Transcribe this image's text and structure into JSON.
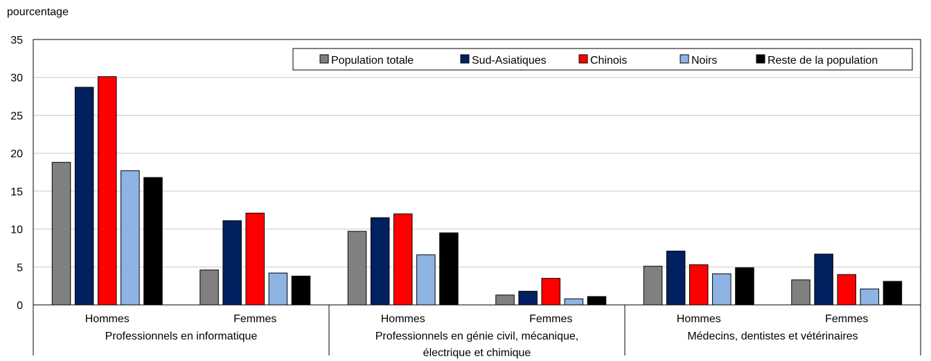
{
  "chart_data": {
    "type": "bar",
    "ylabel": "pourcentage",
    "ylim": [
      0,
      35
    ],
    "yticks": [
      "0",
      "5",
      "10",
      "15",
      "20",
      "25",
      "30",
      "35"
    ],
    "grid": true,
    "legend_position": "top-right",
    "groups": [
      {
        "label_lines": [
          "Professionnels en informatique"
        ]
      },
      {
        "label_lines": [
          "Professionnels en génie civil, mécanique,",
          "électrique et chimique"
        ]
      },
      {
        "label_lines": [
          "Médecins, dentistes et vétérinaires"
        ]
      }
    ],
    "categories": [
      "Hommes",
      "Femmes",
      "Hommes",
      "Femmes",
      "Hommes",
      "Femmes"
    ],
    "series": [
      {
        "name": "Population totale",
        "color": "#808080",
        "values": [
          18.8,
          4.6,
          9.7,
          1.3,
          5.1,
          3.3
        ]
      },
      {
        "name": "Sud-Asiatiques",
        "color": "#002060",
        "values": [
          28.7,
          11.1,
          11.5,
          1.8,
          7.1,
          6.7
        ]
      },
      {
        "name": "Chinois",
        "color": "#ff0000",
        "values": [
          30.1,
          12.1,
          12.0,
          3.5,
          5.3,
          4.0
        ]
      },
      {
        "name": "Noirs",
        "color": "#8db4e2",
        "values": [
          17.7,
          4.2,
          6.6,
          0.8,
          4.1,
          2.1
        ]
      },
      {
        "name": "Reste de la population",
        "color": "#000000",
        "values": [
          16.8,
          3.8,
          9.5,
          1.1,
          4.9,
          3.1
        ]
      }
    ]
  }
}
